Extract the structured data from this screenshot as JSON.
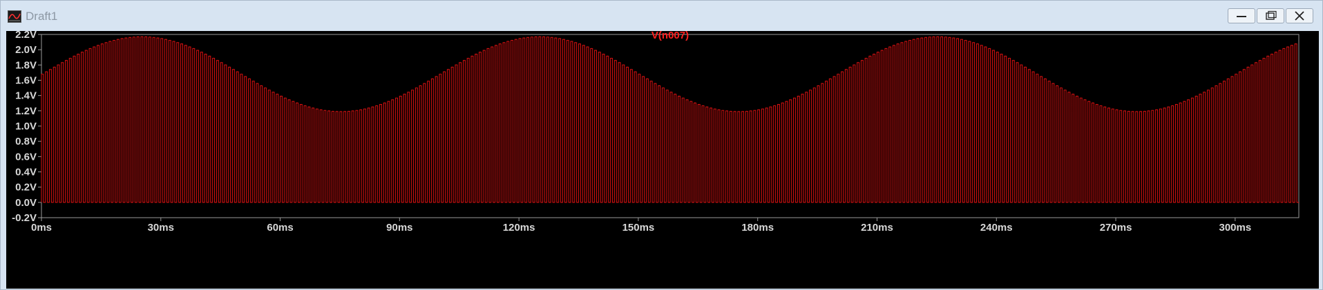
{
  "window": {
    "title": "Draft1",
    "controls": {
      "minimize": "minimize",
      "restore": "restore",
      "close": "close"
    }
  },
  "colors": {
    "trace": "#d01010",
    "title": "#ff2020",
    "axis_text": "#d8d8d8",
    "frame": "#9a9a9a",
    "background": "#000000"
  },
  "chart_data": {
    "type": "line",
    "title": "V(n007)",
    "series": [
      {
        "name": "V(n007)",
        "color": "#d01010"
      }
    ],
    "xlim": [
      0,
      316
    ],
    "ylim": [
      -0.2,
      2.2
    ],
    "x_ticks": [
      0,
      30,
      60,
      90,
      120,
      150,
      180,
      210,
      240,
      270,
      300
    ],
    "x_tick_labels": [
      "0ms",
      "30ms",
      "60ms",
      "90ms",
      "120ms",
      "150ms",
      "180ms",
      "210ms",
      "240ms",
      "270ms",
      "300ms"
    ],
    "y_ticks": [
      -0.2,
      0.0,
      0.2,
      0.4,
      0.6,
      0.8,
      1.0,
      1.2,
      1.4,
      1.6,
      1.8,
      2.0,
      2.2
    ],
    "y_tick_labels": [
      "-0.2V",
      "0.0V",
      "0.2V",
      "0.4V",
      "0.6V",
      "0.8V",
      "1.0V",
      "1.2V",
      "1.4V",
      "1.6V",
      "1.8V",
      "2.0V",
      "2.2V"
    ],
    "pwm_period_ms": 1.0,
    "pwm_duty": 0.5,
    "low_level_v": 0.0,
    "envelope": {
      "shape": "sine",
      "offset_v": 1.68,
      "amplitude_v": 0.49,
      "period_ms": 100,
      "peak_at_ms": 25
    },
    "grid": false,
    "legend": "none"
  }
}
